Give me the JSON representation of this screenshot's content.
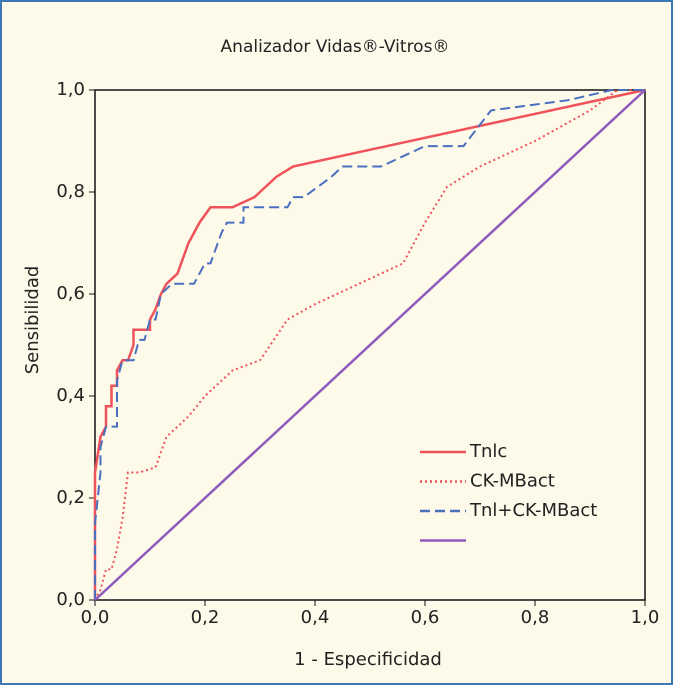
{
  "chart_data": {
    "type": "line",
    "title": "Analizador Vidas®-Vitros®",
    "xlabel": "1 - Especificidad",
    "ylabel": "Sensibilidad",
    "xlim": [
      0,
      1
    ],
    "ylim": [
      0,
      1
    ],
    "xticks": [
      {
        "value": 0,
        "label": "0,0"
      },
      {
        "value": 0.2,
        "label": "0,2"
      },
      {
        "value": 0.4,
        "label": "0,4"
      },
      {
        "value": 0.6,
        "label": "0,6"
      },
      {
        "value": 0.8,
        "label": "0,8"
      },
      {
        "value": 1,
        "label": "1,0"
      }
    ],
    "yticks": [
      {
        "value": 0,
        "label": "0,0"
      },
      {
        "value": 0.2,
        "label": "0,2"
      },
      {
        "value": 0.4,
        "label": "0,4"
      },
      {
        "value": 0.6,
        "label": "0,6"
      },
      {
        "value": 0.8,
        "label": "0,8"
      },
      {
        "value": 1,
        "label": "1,0"
      }
    ],
    "grid": false,
    "series": [
      {
        "name": "Tnlc",
        "color": "#f0525a",
        "dash": "solid",
        "x": [
          0,
          0,
          0.01,
          0.02,
          0.02,
          0.03,
          0.03,
          0.04,
          0.04,
          0.05,
          0.06,
          0.07,
          0.07,
          0.1,
          0.1,
          0.11,
          0.12,
          0.13,
          0.15,
          0.17,
          0.19,
          0.21,
          0.25,
          0.29,
          0.33,
          0.36,
          1
        ],
        "values": [
          0,
          0.25,
          0.32,
          0.34,
          0.38,
          0.38,
          0.42,
          0.42,
          0.45,
          0.47,
          0.47,
          0.5,
          0.53,
          0.53,
          0.55,
          0.57,
          0.6,
          0.62,
          0.64,
          0.7,
          0.74,
          0.77,
          0.77,
          0.79,
          0.83,
          0.85,
          1
        ]
      },
      {
        "name": "CK-MBact",
        "color": "#f0525a",
        "dash": "dotted",
        "x": [
          0,
          0.01,
          0.02,
          0.03,
          0.04,
          0.05,
          0.06,
          0.08,
          0.11,
          0.13,
          0.17,
          0.2,
          0.25,
          0.3,
          0.35,
          0.4,
          0.5,
          0.56,
          0.6,
          0.64,
          0.7,
          0.8,
          0.9,
          0.95,
          1
        ],
        "values": [
          0,
          0.02,
          0.06,
          0.06,
          0.1,
          0.16,
          0.25,
          0.25,
          0.26,
          0.32,
          0.36,
          0.4,
          0.45,
          0.47,
          0.55,
          0.58,
          0.63,
          0.66,
          0.74,
          0.81,
          0.85,
          0.9,
          0.96,
          1,
          1
        ]
      },
      {
        "name": "Tnl+CK-MBact",
        "color": "#4a6fc0",
        "dash": "dashed",
        "x": [
          0,
          0,
          0.01,
          0.01,
          0.02,
          0.04,
          0.04,
          0.05,
          0.07,
          0.08,
          0.09,
          0.1,
          0.11,
          0.12,
          0.14,
          0.18,
          0.19,
          0.2,
          0.21,
          0.23,
          0.24,
          0.27,
          0.27,
          0.35,
          0.36,
          0.38,
          0.43,
          0.45,
          0.52,
          0.6,
          0.67,
          0.72,
          0.86,
          0.94,
          1
        ],
        "values": [
          0,
          0.15,
          0.25,
          0.3,
          0.34,
          0.34,
          0.43,
          0.47,
          0.47,
          0.51,
          0.51,
          0.55,
          0.55,
          0.6,
          0.62,
          0.62,
          0.64,
          0.66,
          0.66,
          0.72,
          0.74,
          0.74,
          0.77,
          0.77,
          0.79,
          0.79,
          0.83,
          0.85,
          0.85,
          0.89,
          0.89,
          0.96,
          0.98,
          1,
          1
        ]
      },
      {
        "name": null,
        "color": "#8e5bbd",
        "dash": "solid",
        "x": [
          0,
          1
        ],
        "values": [
          0,
          1
        ]
      }
    ]
  }
}
